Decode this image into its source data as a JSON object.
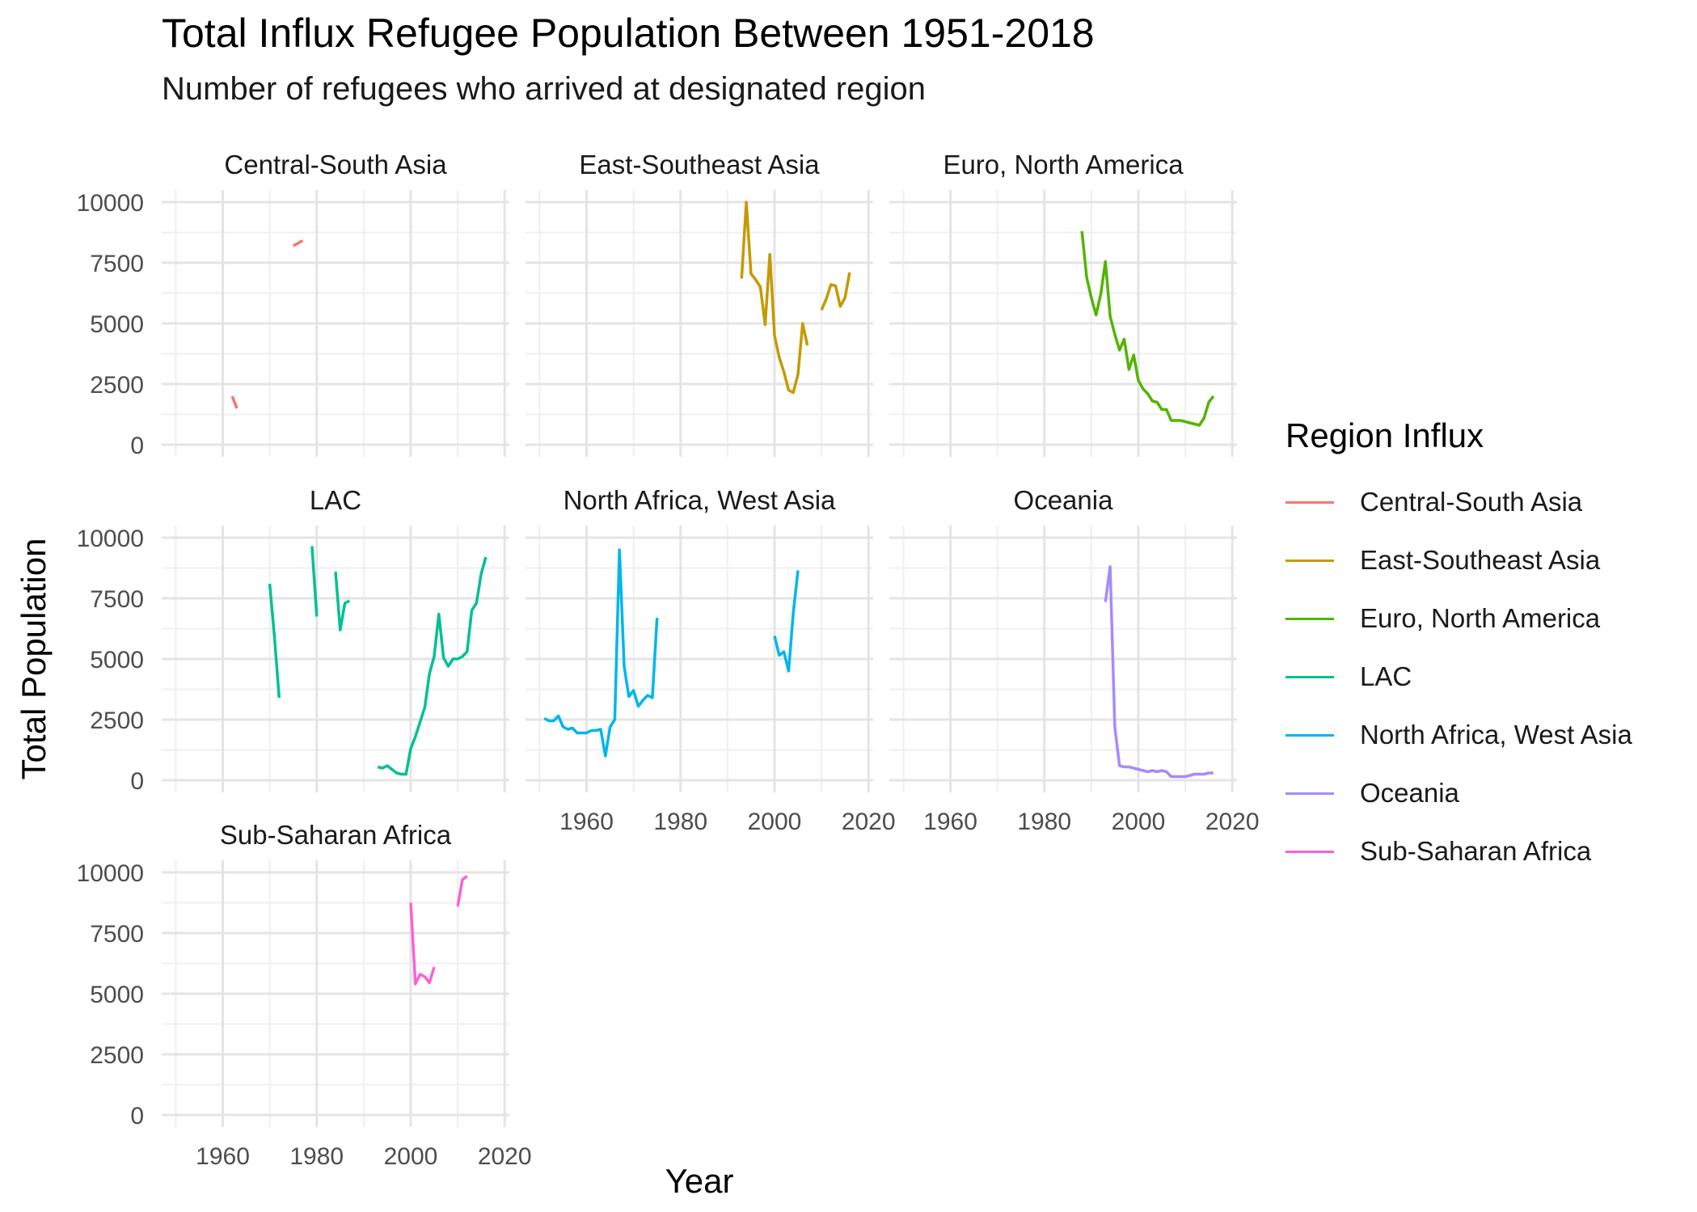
{
  "chart_data": {
    "type": "line",
    "title": "Total Influx Refugee Population Between 1951-2018",
    "subtitle": "Number of refugees who arrived at designated region",
    "xlabel": "Year",
    "ylabel": "Total Population",
    "xlim": [
      1947,
      2021
    ],
    "ylim": [
      -500,
      10500
    ],
    "x_ticks": [
      1960,
      1980,
      2000,
      2020
    ],
    "y_ticks": [
      0,
      2500,
      5000,
      7500,
      10000
    ],
    "grid": true,
    "legend": {
      "title": "Region Influx",
      "position": "right"
    },
    "panels": [
      {
        "name": "Central-South Asia",
        "color": "#F8766D",
        "segments": [
          [
            [
              1962,
              2000
            ],
            [
              1963,
              1500
            ]
          ],
          [
            [
              1975,
              8200
            ],
            [
              1976,
              8300
            ],
            [
              1977,
              8420
            ]
          ]
        ]
      },
      {
        "name": "East-Southeast Asia",
        "color": "#C49A00",
        "segments": [
          [
            [
              1993,
              6850
            ],
            [
              1994,
              10000
            ],
            [
              1995,
              7050
            ],
            [
              1996,
              6800
            ],
            [
              1997,
              6500
            ],
            [
              1998,
              4950
            ],
            [
              1999,
              7850
            ],
            [
              2000,
              4500
            ],
            [
              2001,
              3600
            ],
            [
              2002,
              3000
            ],
            [
              2003,
              2250
            ],
            [
              2004,
              2150
            ],
            [
              2005,
              2900
            ],
            [
              2006,
              5000
            ],
            [
              2007,
              4100
            ]
          ],
          [
            [
              2010,
              5550
            ],
            [
              2011,
              6000
            ],
            [
              2012,
              6600
            ],
            [
              2013,
              6550
            ],
            [
              2014,
              5700
            ],
            [
              2015,
              6050
            ],
            [
              2016,
              7100
            ]
          ]
        ]
      },
      {
        "name": "Euro, North America",
        "color": "#53B400",
        "segments": [
          [
            [
              1988,
              8800
            ],
            [
              1989,
              6900
            ],
            [
              1990,
              6050
            ],
            [
              1991,
              5350
            ],
            [
              1992,
              6200
            ],
            [
              1993,
              7550
            ],
            [
              1994,
              5300
            ],
            [
              1995,
              4550
            ],
            [
              1996,
              3900
            ],
            [
              1997,
              4350
            ],
            [
              1998,
              3100
            ],
            [
              1999,
              3700
            ],
            [
              2000,
              2650
            ],
            [
              2001,
              2300
            ],
            [
              2002,
              2100
            ],
            [
              2003,
              1800
            ],
            [
              2004,
              1750
            ],
            [
              2005,
              1450
            ],
            [
              2006,
              1450
            ],
            [
              2007,
              1000
            ],
            [
              2008,
              1000
            ],
            [
              2009,
              1000
            ],
            [
              2010,
              950
            ],
            [
              2011,
              900
            ],
            [
              2012,
              850
            ],
            [
              2013,
              800
            ],
            [
              2014,
              1100
            ],
            [
              2015,
              1750
            ],
            [
              2016,
              2000
            ]
          ]
        ]
      },
      {
        "name": "LAC",
        "color": "#00C094",
        "segments": [
          [
            [
              1970,
              8100
            ],
            [
              1971,
              5900
            ],
            [
              1972,
              3400
            ]
          ],
          [
            [
              1979,
              9650
            ],
            [
              1980,
              6750
            ]
          ],
          [
            [
              1984,
              8600
            ],
            [
              1985,
              6200
            ],
            [
              1986,
              7300
            ],
            [
              1987,
              7400
            ]
          ],
          [
            [
              1993,
              550
            ],
            [
              1994,
              500
            ],
            [
              1995,
              600
            ],
            [
              1996,
              450
            ],
            [
              1997,
              300
            ],
            [
              1998,
              250
            ],
            [
              1999,
              250
            ],
            [
              2000,
              1300
            ],
            [
              2001,
              1800
            ],
            [
              2002,
              2400
            ],
            [
              2003,
              3000
            ],
            [
              2004,
              4400
            ],
            [
              2005,
              5100
            ],
            [
              2006,
              6850
            ],
            [
              2007,
              5050
            ],
            [
              2008,
              4700
            ],
            [
              2009,
              5000
            ],
            [
              2010,
              5000
            ],
            [
              2011,
              5100
            ],
            [
              2012,
              5300
            ],
            [
              2013,
              7000
            ],
            [
              2014,
              7300
            ],
            [
              2015,
              8500
            ],
            [
              2016,
              9200
            ]
          ]
        ]
      },
      {
        "name": "North Africa, West Asia",
        "color": "#00B6EB",
        "segments": [
          [
            [
              1951,
              2550
            ],
            [
              1952,
              2450
            ],
            [
              1953,
              2450
            ],
            [
              1954,
              2650
            ],
            [
              1955,
              2200
            ],
            [
              1956,
              2100
            ],
            [
              1957,
              2150
            ],
            [
              1958,
              1950
            ],
            [
              1959,
              1950
            ],
            [
              1960,
              1950
            ],
            [
              1961,
              2050
            ],
            [
              1962,
              2050
            ],
            [
              1963,
              2100
            ],
            [
              1964,
              1000
            ],
            [
              1965,
              2200
            ],
            [
              1966,
              2500
            ],
            [
              1967,
              9500
            ],
            [
              1968,
              4700
            ],
            [
              1969,
              3450
            ],
            [
              1970,
              3700
            ],
            [
              1971,
              3050
            ],
            [
              1972,
              3300
            ],
            [
              1973,
              3500
            ],
            [
              1974,
              3400
            ],
            [
              1975,
              6700
            ]
          ],
          [
            [
              2000,
              5950
            ],
            [
              2001,
              5150
            ],
            [
              2002,
              5300
            ],
            [
              2003,
              4500
            ],
            [
              2004,
              6900
            ],
            [
              2005,
              8650
            ]
          ]
        ]
      },
      {
        "name": "Oceania",
        "color": "#A58AFF",
        "segments": [
          [
            [
              1993,
              7350
            ],
            [
              1994,
              8800
            ],
            [
              1995,
              2200
            ],
            [
              1996,
              600
            ],
            [
              1997,
              550
            ],
            [
              1998,
              550
            ],
            [
              1999,
              500
            ],
            [
              2000,
              450
            ],
            [
              2001,
              400
            ],
            [
              2002,
              350
            ],
            [
              2003,
              400
            ],
            [
              2004,
              350
            ],
            [
              2005,
              400
            ],
            [
              2006,
              350
            ],
            [
              2007,
              150
            ],
            [
              2008,
              150
            ],
            [
              2009,
              150
            ],
            [
              2010,
              150
            ],
            [
              2011,
              200
            ],
            [
              2012,
              250
            ],
            [
              2013,
              250
            ],
            [
              2014,
              250
            ],
            [
              2015,
              300
            ],
            [
              2016,
              300
            ]
          ]
        ]
      },
      {
        "name": "Sub-Saharan Africa",
        "color": "#FB61D7",
        "segments": [
          [
            [
              2000,
              8750
            ],
            [
              2001,
              5400
            ],
            [
              2002,
              5800
            ],
            [
              2003,
              5700
            ],
            [
              2004,
              5450
            ],
            [
              2005,
              6100
            ]
          ],
          [
            [
              2010,
              8600
            ],
            [
              2011,
              9700
            ],
            [
              2012,
              9850
            ]
          ]
        ]
      }
    ]
  }
}
